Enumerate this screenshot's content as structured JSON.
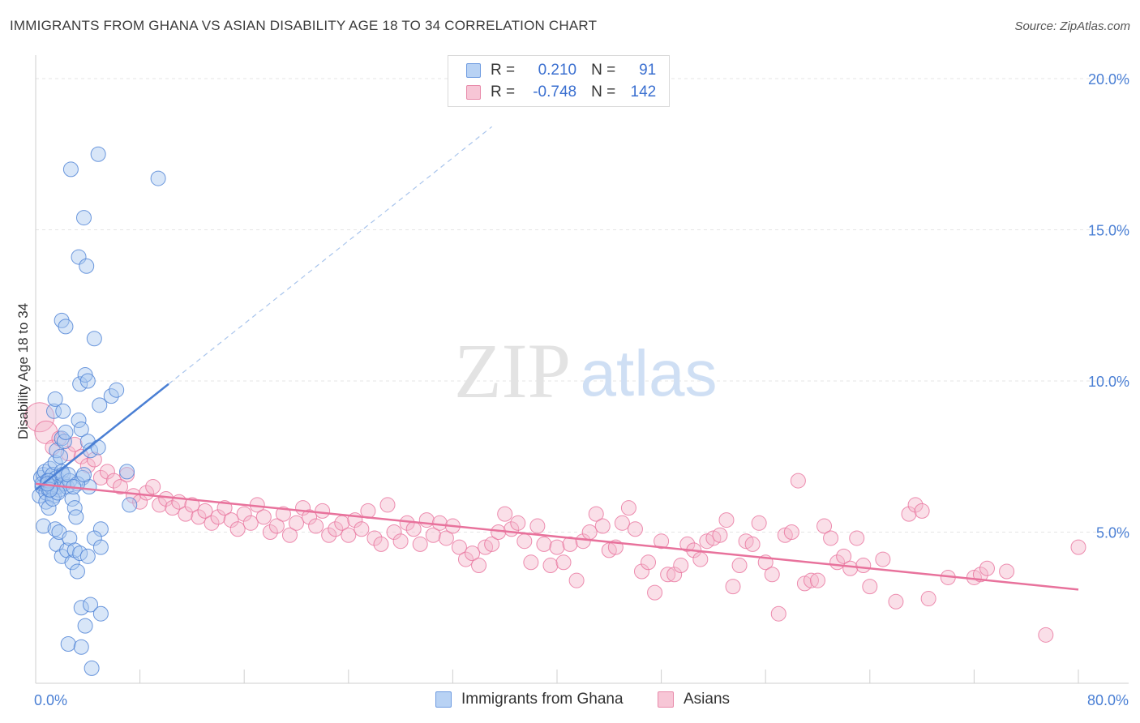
{
  "title": "IMMIGRANTS FROM GHANA VS ASIAN DISABILITY AGE 18 TO 34 CORRELATION CHART",
  "source": "Source: ZipAtlas.com",
  "watermark": {
    "zip": "ZIP",
    "atlas": "atlas"
  },
  "legend": {
    "rows": [
      {
        "r_label": "R =",
        "r_value": "0.210",
        "n_label": "N =",
        "n_value": "91"
      },
      {
        "r_label": "R =",
        "r_value": "-0.748",
        "n_label": "N =",
        "n_value": "142"
      }
    ]
  },
  "colors": {
    "blue": "#4a7fd4",
    "blue_fill": "#a9c8f0",
    "pink": "#e8729c",
    "pink_fill": "#f5b8cc"
  },
  "chart_data": {
    "type": "scatter",
    "ylabel": "Disability Age 18 to 34",
    "xlim": [
      0,
      80
    ],
    "ylim": [
      0,
      20.5
    ],
    "x_tick_labels": [
      {
        "v": 0,
        "t": "0.0%"
      },
      {
        "v": 80,
        "t": "80.0%"
      }
    ],
    "y_tick_labels": [
      {
        "v": 5,
        "t": "5.0%"
      },
      {
        "v": 10,
        "t": "10.0%"
      },
      {
        "v": 15,
        "t": "15.0%"
      },
      {
        "v": 20,
        "t": "20.0%"
      }
    ],
    "grid": true,
    "series": [
      {
        "name": "Immigrants from Ghana",
        "trend": {
          "x0": 0,
          "y0": 6.4,
          "x1": 10.2,
          "y1": 9.9,
          "dash_to_x": 35
        },
        "points": [
          [
            0.3,
            6.2
          ],
          [
            0.4,
            6.8
          ],
          [
            0.5,
            6.5
          ],
          [
            0.6,
            6.9
          ],
          [
            0.5,
            6.6
          ],
          [
            0.7,
            7.0
          ],
          [
            0.8,
            6.3
          ],
          [
            0.9,
            6.7
          ],
          [
            1.0,
            6.4
          ],
          [
            1.1,
            7.1
          ],
          [
            0.6,
            5.2
          ],
          [
            1.2,
            6.6
          ],
          [
            1.3,
            6.9
          ],
          [
            1.4,
            6.2
          ],
          [
            1.5,
            7.3
          ],
          [
            1.6,
            6.8
          ],
          [
            1.7,
            6.5
          ],
          [
            1.8,
            6.4
          ],
          [
            2.0,
            7.0
          ],
          [
            2.2,
            6.6
          ],
          [
            2.1,
            6.9
          ],
          [
            2.4,
            6.5
          ],
          [
            2.6,
            6.7
          ],
          [
            0.8,
            6.0
          ],
          [
            1.0,
            5.8
          ],
          [
            1.3,
            6.1
          ],
          [
            1.2,
            6.5
          ],
          [
            1.4,
            9.0
          ],
          [
            1.5,
            9.4
          ],
          [
            1.6,
            7.7
          ],
          [
            1.9,
            7.5
          ],
          [
            2.0,
            8.1
          ],
          [
            2.2,
            8.0
          ],
          [
            2.3,
            8.3
          ],
          [
            2.1,
            9.0
          ],
          [
            2.8,
            6.1
          ],
          [
            3.0,
            5.8
          ],
          [
            3.1,
            5.5
          ],
          [
            3.3,
            8.7
          ],
          [
            3.5,
            8.4
          ],
          [
            3.4,
            9.9
          ],
          [
            3.6,
            6.8
          ],
          [
            3.8,
            10.2
          ],
          [
            4.0,
            10.0
          ],
          [
            4.0,
            8.0
          ],
          [
            4.2,
            7.7
          ],
          [
            4.1,
            6.5
          ],
          [
            4.8,
            7.8
          ],
          [
            4.9,
            9.2
          ],
          [
            5.0,
            5.1
          ],
          [
            2.0,
            12.0
          ],
          [
            2.3,
            11.8
          ],
          [
            2.7,
            17.0
          ],
          [
            3.3,
            14.1
          ],
          [
            3.7,
            15.4
          ],
          [
            3.9,
            13.8
          ],
          [
            4.5,
            11.4
          ],
          [
            4.8,
            17.5
          ],
          [
            5.8,
            9.5
          ],
          [
            6.2,
            9.7
          ],
          [
            7.0,
            7.0
          ],
          [
            7.2,
            5.9
          ],
          [
            9.4,
            16.7
          ],
          [
            1.5,
            5.1
          ],
          [
            1.6,
            4.6
          ],
          [
            1.8,
            5.0
          ],
          [
            2.0,
            4.2
          ],
          [
            2.4,
            4.4
          ],
          [
            2.6,
            4.8
          ],
          [
            2.8,
            4.0
          ],
          [
            3.0,
            4.4
          ],
          [
            3.2,
            3.7
          ],
          [
            3.4,
            4.3
          ],
          [
            4.0,
            4.2
          ],
          [
            4.5,
            4.8
          ],
          [
            5.0,
            4.5
          ],
          [
            3.5,
            2.5
          ],
          [
            4.2,
            2.6
          ],
          [
            3.8,
            1.9
          ],
          [
            5.0,
            2.3
          ],
          [
            2.5,
            1.3
          ],
          [
            3.5,
            1.2
          ],
          [
            4.3,
            0.5
          ],
          [
            1.0,
            6.7
          ],
          [
            1.7,
            6.3
          ],
          [
            2.5,
            6.9
          ],
          [
            3.2,
            6.6
          ],
          [
            3.7,
            6.9
          ],
          [
            1.1,
            6.4
          ],
          [
            0.9,
            6.6
          ],
          [
            2.9,
            6.5
          ]
        ]
      },
      {
        "name": "Asians",
        "trend": {
          "x0": 0,
          "y0": 6.6,
          "x1": 80,
          "y1": 3.1
        },
        "points": [
          [
            0.3,
            8.8
          ],
          [
            0.8,
            8.3
          ],
          [
            1.3,
            7.8
          ],
          [
            1.8,
            8.1
          ],
          [
            2.5,
            7.6
          ],
          [
            3.0,
            7.9
          ],
          [
            3.5,
            7.5
          ],
          [
            4.0,
            7.2
          ],
          [
            4.5,
            7.4
          ],
          [
            5.0,
            6.8
          ],
          [
            5.5,
            7.0
          ],
          [
            6.0,
            6.7
          ],
          [
            6.5,
            6.5
          ],
          [
            7.0,
            6.9
          ],
          [
            7.5,
            6.2
          ],
          [
            8.0,
            6.0
          ],
          [
            8.5,
            6.3
          ],
          [
            9.0,
            6.5
          ],
          [
            9.5,
            5.9
          ],
          [
            10.0,
            6.1
          ],
          [
            10.5,
            5.8
          ],
          [
            11.0,
            6.0
          ],
          [
            11.5,
            5.6
          ],
          [
            12.0,
            5.9
          ],
          [
            12.5,
            5.5
          ],
          [
            13.0,
            5.7
          ],
          [
            13.5,
            5.3
          ],
          [
            14.0,
            5.5
          ],
          [
            14.5,
            5.8
          ],
          [
            15.0,
            5.4
          ],
          [
            15.5,
            5.1
          ],
          [
            16.0,
            5.6
          ],
          [
            16.5,
            5.3
          ],
          [
            17.0,
            5.9
          ],
          [
            17.5,
            5.5
          ],
          [
            18.0,
            5.0
          ],
          [
            18.5,
            5.2
          ],
          [
            19.0,
            5.6
          ],
          [
            19.5,
            4.9
          ],
          [
            20.0,
            5.3
          ],
          [
            20.5,
            5.8
          ],
          [
            21.0,
            5.5
          ],
          [
            21.5,
            5.2
          ],
          [
            22.0,
            5.7
          ],
          [
            22.5,
            4.9
          ],
          [
            23.0,
            5.1
          ],
          [
            23.5,
            5.3
          ],
          [
            24.0,
            4.9
          ],
          [
            24.5,
            5.4
          ],
          [
            25.0,
            5.1
          ],
          [
            25.5,
            5.7
          ],
          [
            26.0,
            4.8
          ],
          [
            26.5,
            4.6
          ],
          [
            27.0,
            5.9
          ],
          [
            27.5,
            5.0
          ],
          [
            28.0,
            4.7
          ],
          [
            28.5,
            5.3
          ],
          [
            29.0,
            5.1
          ],
          [
            29.5,
            4.6
          ],
          [
            30.0,
            5.4
          ],
          [
            30.5,
            4.9
          ],
          [
            31.0,
            5.3
          ],
          [
            31.5,
            4.8
          ],
          [
            32.0,
            5.2
          ],
          [
            32.5,
            4.5
          ],
          [
            33.0,
            4.1
          ],
          [
            33.5,
            4.3
          ],
          [
            34.0,
            3.9
          ],
          [
            34.5,
            4.5
          ],
          [
            35.0,
            4.6
          ],
          [
            35.5,
            5.0
          ],
          [
            36.0,
            5.6
          ],
          [
            36.5,
            5.1
          ],
          [
            37.0,
            5.3
          ],
          [
            37.5,
            4.7
          ],
          [
            38.0,
            4.0
          ],
          [
            38.5,
            5.2
          ],
          [
            39.0,
            4.6
          ],
          [
            39.5,
            3.9
          ],
          [
            40.0,
            4.5
          ],
          [
            40.5,
            4.0
          ],
          [
            41.0,
            4.6
          ],
          [
            41.5,
            3.4
          ],
          [
            42.0,
            4.7
          ],
          [
            42.5,
            5.0
          ],
          [
            43.0,
            5.6
          ],
          [
            43.5,
            5.2
          ],
          [
            44.0,
            4.4
          ],
          [
            44.5,
            4.5
          ],
          [
            45.0,
            5.3
          ],
          [
            45.5,
            5.8
          ],
          [
            46.0,
            5.1
          ],
          [
            46.5,
            3.7
          ],
          [
            47.0,
            4.0
          ],
          [
            47.5,
            3.0
          ],
          [
            48.0,
            4.7
          ],
          [
            48.5,
            3.6
          ],
          [
            49.0,
            3.6
          ],
          [
            49.5,
            3.9
          ],
          [
            50.0,
            4.6
          ],
          [
            50.5,
            4.4
          ],
          [
            51.0,
            4.1
          ],
          [
            51.5,
            4.7
          ],
          [
            52.0,
            4.8
          ],
          [
            52.5,
            4.9
          ],
          [
            53.0,
            5.4
          ],
          [
            53.5,
            3.2
          ],
          [
            54.0,
            3.9
          ],
          [
            54.5,
            4.7
          ],
          [
            55.0,
            4.6
          ],
          [
            55.5,
            5.3
          ],
          [
            56.0,
            4.0
          ],
          [
            56.5,
            3.6
          ],
          [
            57.0,
            2.3
          ],
          [
            57.5,
            4.9
          ],
          [
            58.0,
            5.0
          ],
          [
            58.5,
            6.7
          ],
          [
            59.0,
            3.3
          ],
          [
            59.5,
            3.4
          ],
          [
            60.0,
            3.4
          ],
          [
            60.5,
            5.2
          ],
          [
            61.0,
            4.8
          ],
          [
            61.5,
            4.0
          ],
          [
            62.0,
            4.2
          ],
          [
            62.5,
            3.8
          ],
          [
            63.0,
            4.8
          ],
          [
            63.5,
            3.9
          ],
          [
            64.0,
            3.2
          ],
          [
            65.0,
            4.1
          ],
          [
            66.0,
            2.7
          ],
          [
            67.0,
            5.6
          ],
          [
            67.5,
            5.9
          ],
          [
            68.0,
            5.7
          ],
          [
            68.5,
            2.8
          ],
          [
            70.0,
            3.5
          ],
          [
            72.0,
            3.5
          ],
          [
            72.5,
            3.6
          ],
          [
            73.0,
            3.8
          ],
          [
            74.5,
            3.7
          ],
          [
            77.5,
            1.6
          ],
          [
            80.0,
            4.5
          ]
        ]
      }
    ]
  },
  "bottom_legend": {
    "items": [
      "Immigrants from Ghana",
      "Asians"
    ]
  }
}
